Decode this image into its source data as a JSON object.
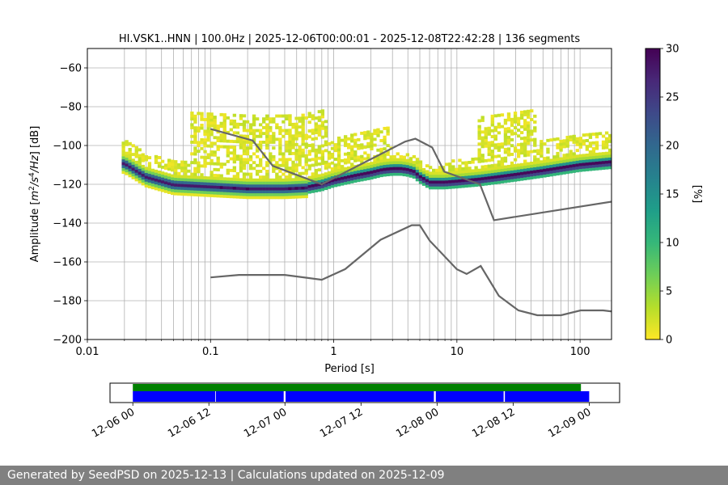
{
  "chart_data": [
    {
      "type": "heatmap",
      "title": "HI.VSK1..HNN | 100.0Hz | 2025-12-06T00:00:01 - 2025-12-08T22:42:28 | 136 segments",
      "xlabel": "Period [s]",
      "ylabel_prefix": "Amplitude [",
      "ylabel_suffix": "] [dB]",
      "x_scale": "log",
      "xlim": [
        0.01,
        180
      ],
      "ylim": [
        -200,
        -50
      ],
      "x_ticks": [
        0.01,
        0.1,
        1,
        10,
        100
      ],
      "x_tick_labels": [
        "0.01",
        "0.1",
        "1",
        "10",
        "100"
      ],
      "y_ticks": [
        -200,
        -180,
        -160,
        -140,
        -120,
        -100,
        -80,
        -60
      ],
      "y_tick_labels": [
        "−200",
        "−180",
        "−160",
        "−140",
        "−120",
        "−100",
        "−80",
        "−60"
      ],
      "grid": true,
      "colorbar": {
        "label": "[%]",
        "range": [
          0,
          30
        ],
        "ticks": [
          0,
          5,
          10,
          15,
          20,
          25,
          30
        ],
        "tick_labels": [
          "0",
          "5",
          "10",
          "15",
          "20",
          "25",
          "30"
        ],
        "colors": [
          "#fde725",
          "#b5de2b",
          "#6ece58",
          "#35b779",
          "#1f9e89",
          "#26828e",
          "#31688e",
          "#3e4989",
          "#482878",
          "#440154"
        ]
      },
      "noise_model_color": "#666666",
      "high_noise_model": {
        "period": [
          0.1,
          0.22,
          0.32,
          0.8,
          3.8,
          4.6,
          6.3,
          7.9,
          15.4,
          20,
          354.8
        ],
        "db": [
          -91.5,
          -97.4,
          -110.5,
          -120,
          -98,
          -96.5,
          -101,
          -113.5,
          -120,
          -138.5,
          -126
        ]
      },
      "low_noise_model": {
        "period": [
          0.1,
          0.17,
          0.4,
          0.8,
          1.24,
          2.4,
          4.3,
          5,
          6,
          10,
          12,
          15.6,
          21.9,
          31.6,
          45,
          70,
          101,
          154,
          328
        ],
        "db": [
          -168,
          -166.7,
          -166.7,
          -169.2,
          -163.7,
          -148.6,
          -141.1,
          -141.1,
          -149,
          -163.8,
          -166.2,
          -162.1,
          -177.5,
          -185,
          -187.5,
          -187.5,
          -185,
          -185,
          -187.5
        ]
      },
      "mode_curve": {
        "period": [
          0.02,
          0.03,
          0.05,
          0.1,
          0.2,
          0.4,
          0.6,
          0.8,
          1.0,
          1.5,
          2.0,
          2.5,
          3.0,
          3.5,
          4.0,
          4.5,
          5.0,
          5.5,
          6.0,
          7.0,
          8.0,
          10,
          15,
          20,
          30,
          50,
          100,
          180
        ],
        "db": [
          -110,
          -117,
          -121,
          -122,
          -123,
          -123,
          -122.5,
          -121,
          -119,
          -116.5,
          -115,
          -113.5,
          -113,
          -113,
          -113.5,
          -114.5,
          -117,
          -118.5,
          -120,
          -120,
          -120,
          -119.5,
          -118.5,
          -117.5,
          -116,
          -114,
          -111,
          -109.5
        ]
      },
      "distribution_summary": "probability density of PSD values in percent"
    },
    {
      "type": "timeline",
      "x_ticks": [
        "12-06 00",
        "12-06 12",
        "12-07 00",
        "12-07 12",
        "12-08 00",
        "12-08 12",
        "12-09 00"
      ],
      "xlim_hours": [
        -3.6,
        76.8
      ],
      "data_coverage": {
        "color": "#008000",
        "intervals_hours": [
          [
            0,
            70.7
          ]
        ]
      },
      "psd_segments": {
        "color": "#0000ff",
        "intervals_hours": [
          [
            0,
            13
          ],
          [
            13.1,
            23.8
          ],
          [
            24.1,
            47.5
          ],
          [
            47.8,
            58.5
          ],
          [
            58.7,
            72
          ]
        ]
      }
    }
  ],
  "footer": {
    "text": "Generated by SeedPSD on 2025-12-13 | Calculations updated on 2025-12-09"
  }
}
